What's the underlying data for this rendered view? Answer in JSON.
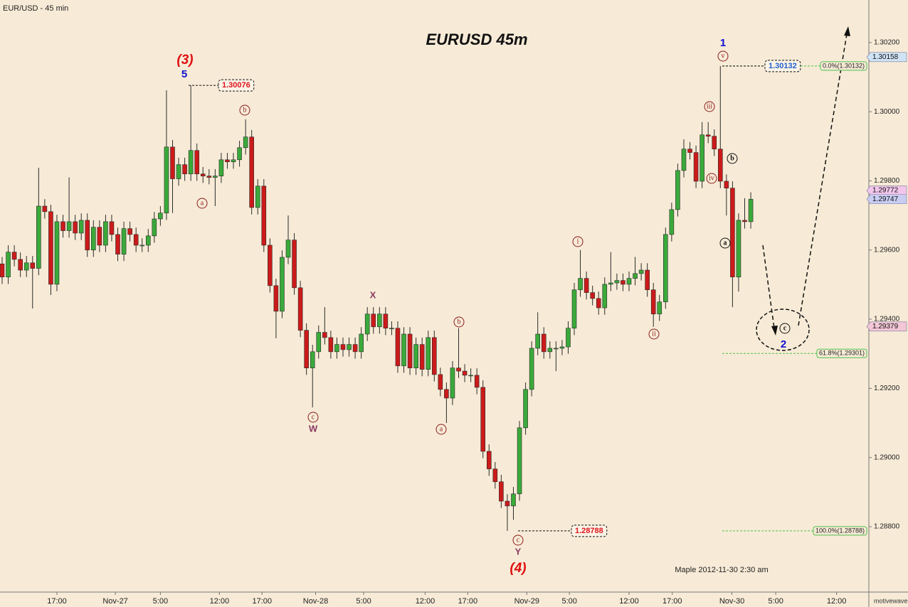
{
  "chart_data": {
    "type": "candlestick",
    "title": "EURUSD  45m",
    "symbol_label": "EUR/USD - 45 min",
    "footer": "Maple  2012-11-30  2:30 am",
    "watermark": "motivewave.com",
    "up_color": "#3aaa3a",
    "down_color": "#cc1a1a",
    "xlim": [
      -0.35,
      142.4
    ],
    "ylim": [
      1.28611,
      1.30323
    ],
    "xticks": [
      {
        "value": 9.0,
        "label": "17:00"
      },
      {
        "value": 18.6,
        "label": "Nov-27"
      },
      {
        "value": 26.0,
        "label": "5:00"
      },
      {
        "value": 35.7,
        "label": "12:00"
      },
      {
        "value": 42.7,
        "label": "17:00"
      },
      {
        "value": 51.5,
        "label": "Nov-28"
      },
      {
        "value": 59.4,
        "label": "5:00"
      },
      {
        "value": 69.5,
        "label": "12:00"
      },
      {
        "value": 76.5,
        "label": "17:00"
      },
      {
        "value": 86.2,
        "label": "Nov-29"
      },
      {
        "value": 93.2,
        "label": "5:00"
      },
      {
        "value": 103.0,
        "label": "12:00"
      },
      {
        "value": 110.1,
        "label": "17:00"
      },
      {
        "value": 119.9,
        "label": "Nov-30"
      },
      {
        "value": 127.1,
        "label": "5:00"
      },
      {
        "value": 137.1,
        "label": "12:00"
      }
    ],
    "yticks": [
      {
        "value": 1.302,
        "label": "1.30200"
      },
      {
        "value": 1.3,
        "label": "1.30000"
      },
      {
        "value": 1.298,
        "label": "1.29800"
      },
      {
        "value": 1.296,
        "label": "1.29600"
      },
      {
        "value": 1.294,
        "label": "1.29400"
      },
      {
        "value": 1.292,
        "label": "1.29200"
      },
      {
        "value": 1.29,
        "label": "1.29000"
      },
      {
        "value": 1.288,
        "label": "1.28800"
      }
    ],
    "open": [
      1.2956,
      1.29522,
      1.29594,
      1.29573,
      1.29542,
      1.29563,
      1.29547,
      1.29727,
      1.29711,
      1.29501,
      1.29682,
      1.29656,
      1.29682,
      1.29649,
      1.29686,
      1.296,
      1.29666,
      1.29614,
      1.29682,
      1.29645,
      1.29588,
      1.29662,
      1.29645,
      1.29614,
      1.29614,
      1.29641,
      1.2969,
      1.29707,
      1.29898,
      1.29806,
      1.29847,
      1.2982,
      1.29888,
      1.2982,
      1.29814,
      1.2981,
      1.29814,
      1.29861,
      1.29855,
      1.29861,
      1.29896,
      1.29927,
      1.29723,
      1.29785,
      1.29614,
      1.29497,
      1.29423,
      1.29579,
      1.29629,
      1.29491,
      1.29368,
      1.29259,
      1.29306,
      1.29362,
      1.29347,
      1.29306,
      1.29327,
      1.29312,
      1.29327,
      1.29306,
      1.29357,
      1.29415,
      1.29378,
      1.29415,
      1.29374,
      1.29374,
      1.29265,
      1.29357,
      1.29259,
      1.29327,
      1.29255,
      1.29347,
      1.2924,
      1.29197,
      1.29172,
      1.29259,
      1.2925,
      1.29238,
      1.29238,
      1.29203,
      1.29018,
      1.28967,
      1.2893,
      1.28874,
      1.2886,
      1.28895,
      1.29086,
      1.29197,
      1.29316,
      1.29357,
      1.29306,
      1.29316,
      1.29316,
      1.2932,
      1.29374,
      1.29485,
      1.29518,
      1.29477,
      1.2946,
      1.29433,
      1.29501,
      1.29505,
      1.29512,
      1.29501,
      1.29518,
      1.29532,
      1.29542,
      1.29485,
      1.29415,
      1.2945,
      1.29645,
      1.29717,
      1.2983,
      1.29892,
      1.29882,
      1.29799,
      1.29933,
      1.29929,
      1.29892,
      1.29799,
      1.29779,
      1.29522,
      1.29686,
      1.29682
    ],
    "high": [
      1.2958,
      1.29614,
      1.29614,
      1.29593,
      1.29583,
      1.29583,
      1.29838,
      1.29747,
      1.29731,
      1.29702,
      1.29702,
      1.2981,
      1.29702,
      1.29706,
      1.29706,
      1.29686,
      1.29686,
      1.29702,
      1.29702,
      1.29665,
      1.29682,
      1.29682,
      1.29665,
      1.29634,
      1.29661,
      1.2971,
      1.29727,
      1.30062,
      1.29918,
      1.29867,
      1.29867,
      1.30076,
      1.29908,
      1.2984,
      1.29834,
      1.29834,
      1.29881,
      1.29881,
      1.29881,
      1.29916,
      1.29978,
      1.29947,
      1.29805,
      1.29805,
      1.29634,
      1.29517,
      1.29599,
      1.297,
      1.29649,
      1.29511,
      1.29388,
      1.29326,
      1.29382,
      1.29435,
      1.29367,
      1.29347,
      1.29347,
      1.29347,
      1.29347,
      1.29377,
      1.29435,
      1.29435,
      1.29435,
      1.29435,
      1.29394,
      1.29394,
      1.29377,
      1.29377,
      1.29347,
      1.29347,
      1.29367,
      1.29367,
      1.2926,
      1.29217,
      1.29279,
      1.29374,
      1.2927,
      1.29258,
      1.29258,
      1.29223,
      1.29038,
      1.28987,
      1.2895,
      1.28894,
      1.28915,
      1.29106,
      1.29217,
      1.29336,
      1.2942,
      1.29377,
      1.29336,
      1.29336,
      1.2934,
      1.29394,
      1.29505,
      1.296,
      1.29538,
      1.29497,
      1.2948,
      1.29521,
      1.29594,
      1.29532,
      1.29532,
      1.29538,
      1.2958,
      1.29562,
      1.29562,
      1.29505,
      1.2947,
      1.29665,
      1.29737,
      1.2985,
      1.2992,
      1.29912,
      1.29902,
      1.2997,
      1.2997,
      1.29949,
      1.30132,
      1.29819,
      1.29799,
      1.29706,
      1.2975,
      1.29767
    ],
    "low": [
      1.29502,
      1.29502,
      1.29553,
      1.29522,
      1.29522,
      1.29431,
      1.29527,
      1.29691,
      1.2947,
      1.29481,
      1.29636,
      1.29636,
      1.29629,
      1.29629,
      1.2958,
      1.2958,
      1.29594,
      1.29594,
      1.29625,
      1.29568,
      1.29568,
      1.29625,
      1.29594,
      1.29594,
      1.29594,
      1.29621,
      1.2967,
      1.29687,
      1.29707,
      1.29786,
      1.298,
      1.298,
      1.298,
      1.29794,
      1.2979,
      1.29727,
      1.29794,
      1.29835,
      1.29835,
      1.29841,
      1.29876,
      1.29703,
      1.29703,
      1.29594,
      1.29477,
      1.29345,
      1.29403,
      1.29559,
      1.29471,
      1.29348,
      1.29239,
      1.29145,
      1.29286,
      1.29327,
      1.29286,
      1.29286,
      1.29292,
      1.29292,
      1.29286,
      1.29286,
      1.29337,
      1.29358,
      1.29358,
      1.29354,
      1.29354,
      1.29245,
      1.29245,
      1.29239,
      1.29239,
      1.29235,
      1.29235,
      1.2922,
      1.29177,
      1.291,
      1.29152,
      1.2923,
      1.29218,
      1.29218,
      1.29183,
      1.28998,
      1.28947,
      1.2891,
      1.28854,
      1.28788,
      1.2882,
      1.28875,
      1.29066,
      1.29177,
      1.29296,
      1.29286,
      1.29286,
      1.2925,
      1.29296,
      1.293,
      1.29354,
      1.29465,
      1.29457,
      1.2944,
      1.29413,
      1.29413,
      1.29481,
      1.29485,
      1.29481,
      1.29481,
      1.29498,
      1.29512,
      1.29465,
      1.29378,
      1.29395,
      1.2943,
      1.29625,
      1.29697,
      1.2981,
      1.29862,
      1.29779,
      1.29779,
      1.29909,
      1.29872,
      1.29779,
      1.297,
      1.29435,
      1.2948,
      1.29662,
      1.29662
    ],
    "close": [
      1.29522,
      1.29594,
      1.29573,
      1.29542,
      1.29563,
      1.29547,
      1.29727,
      1.29711,
      1.29501,
      1.29682,
      1.29656,
      1.29682,
      1.29649,
      1.29686,
      1.296,
      1.29666,
      1.29614,
      1.29682,
      1.29645,
      1.29588,
      1.29662,
      1.29645,
      1.29614,
      1.29614,
      1.29641,
      1.2969,
      1.29707,
      1.29898,
      1.29806,
      1.29847,
      1.2982,
      1.29888,
      1.2982,
      1.29814,
      1.2981,
      1.29814,
      1.29861,
      1.29855,
      1.29861,
      1.29896,
      1.29927,
      1.29723,
      1.29785,
      1.29614,
      1.29497,
      1.29423,
      1.29579,
      1.29629,
      1.29491,
      1.29368,
      1.29259,
      1.29306,
      1.29362,
      1.29347,
      1.29306,
      1.29327,
      1.29312,
      1.29327,
      1.29306,
      1.29357,
      1.29415,
      1.29378,
      1.29415,
      1.29374,
      1.29374,
      1.29265,
      1.29357,
      1.29259,
      1.29327,
      1.29255,
      1.29347,
      1.2924,
      1.29197,
      1.29172,
      1.29259,
      1.2925,
      1.29238,
      1.29238,
      1.29203,
      1.29018,
      1.28967,
      1.2893,
      1.28874,
      1.2886,
      1.28895,
      1.29086,
      1.29197,
      1.29316,
      1.29357,
      1.29306,
      1.29316,
      1.29316,
      1.2932,
      1.29374,
      1.29485,
      1.29518,
      1.29477,
      1.2946,
      1.29433,
      1.29501,
      1.29505,
      1.29512,
      1.29501,
      1.29518,
      1.29532,
      1.29542,
      1.29485,
      1.29415,
      1.2945,
      1.29645,
      1.29717,
      1.2983,
      1.29892,
      1.29882,
      1.29799,
      1.29933,
      1.29929,
      1.29892,
      1.29799,
      1.29779,
      1.29522,
      1.29686,
      1.29682,
      1.29747
    ],
    "price_callouts": [
      {
        "value": 1.30076,
        "color": "#e0141e"
      },
      {
        "value": 1.30132,
        "color": "#1f5fd0"
      },
      {
        "value": 1.28788,
        "color": "#e0141e"
      }
    ],
    "fib_levels": [
      {
        "value": 1.30132,
        "label": "0.0%(1.30132)"
      },
      {
        "value": 1.29301,
        "label": "61.8%(1.29301)"
      },
      {
        "value": 1.28788,
        "label": "100.0%(1.28788)"
      }
    ],
    "price_markers": [
      {
        "value": 1.30158,
        "color": "#cfe3f5"
      },
      {
        "value": 1.29772,
        "color": "#f2c6ec"
      },
      {
        "value": 1.29747,
        "color": "#c9cdf2"
      },
      {
        "value": 1.29379,
        "color": "#f2c6d6"
      }
    ],
    "annotations": [
      "(3)",
      "5",
      "b",
      "a",
      "c",
      "W",
      "X",
      "b",
      "a",
      "c",
      "Y",
      "(4)",
      "i",
      "ii",
      "iii",
      "iv",
      "v",
      "1",
      "b",
      "a",
      "c",
      "2"
    ]
  }
}
